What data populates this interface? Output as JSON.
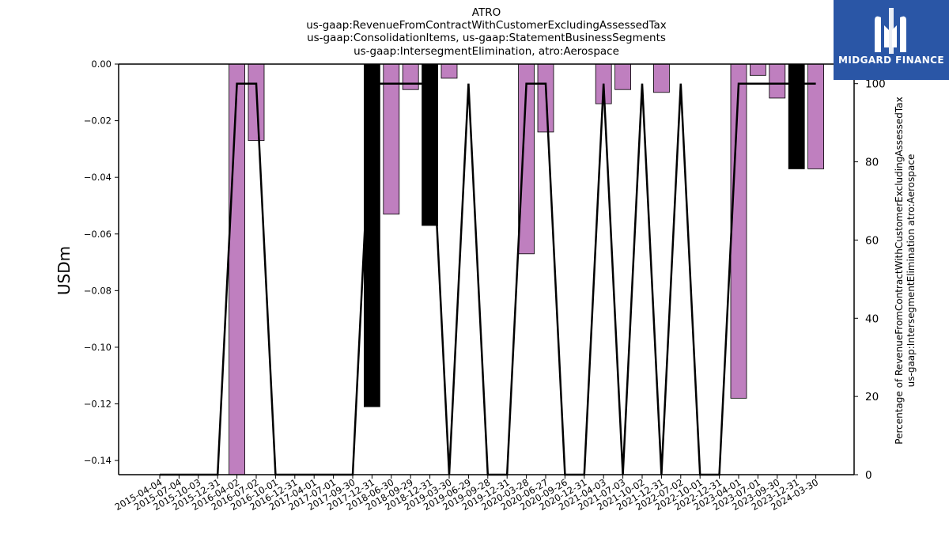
{
  "title_lines": [
    "ATRO",
    "us-gaap:RevenueFromContractWithCustomerExcludingAssessedTax",
    "us-gaap:ConsolidationItems, us-gaap:StatementBusinessSegments",
    "us-gaap:IntersegmentElimination, atro:Aerospace"
  ],
  "logo_text": "MIDGARD FINANCE",
  "colors": {
    "positive_bar": "#bf7fbf",
    "negative_bar": "#000000",
    "line": "#000000",
    "logo_bg": "#2a56a6"
  },
  "chart_data": {
    "type": "bar",
    "categories": [
      "2015-04-04",
      "2015-07-04",
      "2015-10-03",
      "2015-12-31",
      "2016-04-02",
      "2016-07-02",
      "2016-10-01",
      "2016-12-31",
      "2017-04-01",
      "2017-07-01",
      "2017-09-30",
      "2017-12-31",
      "2018-06-30",
      "2018-09-29",
      "2018-12-31",
      "2019-03-30",
      "2019-06-29",
      "2019-09-28",
      "2019-12-31",
      "2020-03-28",
      "2020-06-27",
      "2020-09-26",
      "2020-12-31",
      "2021-04-03",
      "2021-07-03",
      "2021-10-02",
      "2021-12-31",
      "2022-07-02",
      "2022-10-01",
      "2022-12-31",
      "2023-04-01",
      "2023-07-01",
      "2023-09-30",
      "2023-12-31",
      "2024-03-30"
    ],
    "series": [
      {
        "values": [
          0,
          0,
          0,
          0,
          -0.145,
          -0.027,
          0,
          0,
          0,
          0,
          0,
          -0.121,
          -0.053,
          -0.009,
          -0.057,
          -0.005,
          0,
          0,
          0,
          -0.067,
          -0.024,
          0,
          0,
          -0.014,
          -0.009,
          0,
          -0.01,
          0,
          0,
          0,
          -0.118,
          -0.004,
          -0.012,
          -0.037,
          -0.037
        ],
        "bar_color": [
          "#bf7fbf",
          "#bf7fbf",
          "#bf7fbf",
          "#bf7fbf",
          "#bf7fbf",
          "#bf7fbf",
          "#bf7fbf",
          "#bf7fbf",
          "#bf7fbf",
          "#bf7fbf",
          "#bf7fbf",
          "#000000",
          "#bf7fbf",
          "#bf7fbf",
          "#000000",
          "#bf7fbf",
          "#bf7fbf",
          "#bf7fbf",
          "#bf7fbf",
          "#bf7fbf",
          "#bf7fbf",
          "#bf7fbf",
          "#bf7fbf",
          "#bf7fbf",
          "#bf7fbf",
          "#bf7fbf",
          "#bf7fbf",
          "#bf7fbf",
          "#bf7fbf",
          "#bf7fbf",
          "#bf7fbf",
          "#bf7fbf",
          "#bf7fbf",
          "#000000",
          "#bf7fbf"
        ]
      },
      {
        "axis": "right",
        "type": "line",
        "values": [
          0,
          0,
          0,
          0,
          100,
          100,
          0,
          0,
          0,
          0,
          0,
          100,
          100,
          100,
          100,
          0,
          100,
          0,
          0,
          100,
          100,
          0,
          0,
          100,
          0,
          100,
          0,
          100,
          0,
          0,
          100,
          100,
          100,
          100,
          100
        ]
      }
    ],
    "ylabel": "USDm",
    "ylabel_right": [
      "Percentage of RevenueFromContractWithCustomerExcludingAssessedTax",
      "us-gaap:IntersegmentElimination atro:Aerospace"
    ],
    "ylim": [
      -0.145,
      0
    ],
    "yticks": [
      "0.00",
      "−0.02",
      "−0.04",
      "−0.06",
      "−0.08",
      "−0.10",
      "−0.12",
      "−0.14"
    ],
    "ylim_right": [
      0,
      105
    ],
    "yticks_right": [
      "0",
      "20",
      "40",
      "60",
      "80",
      "100"
    ],
    "grid": false
  }
}
